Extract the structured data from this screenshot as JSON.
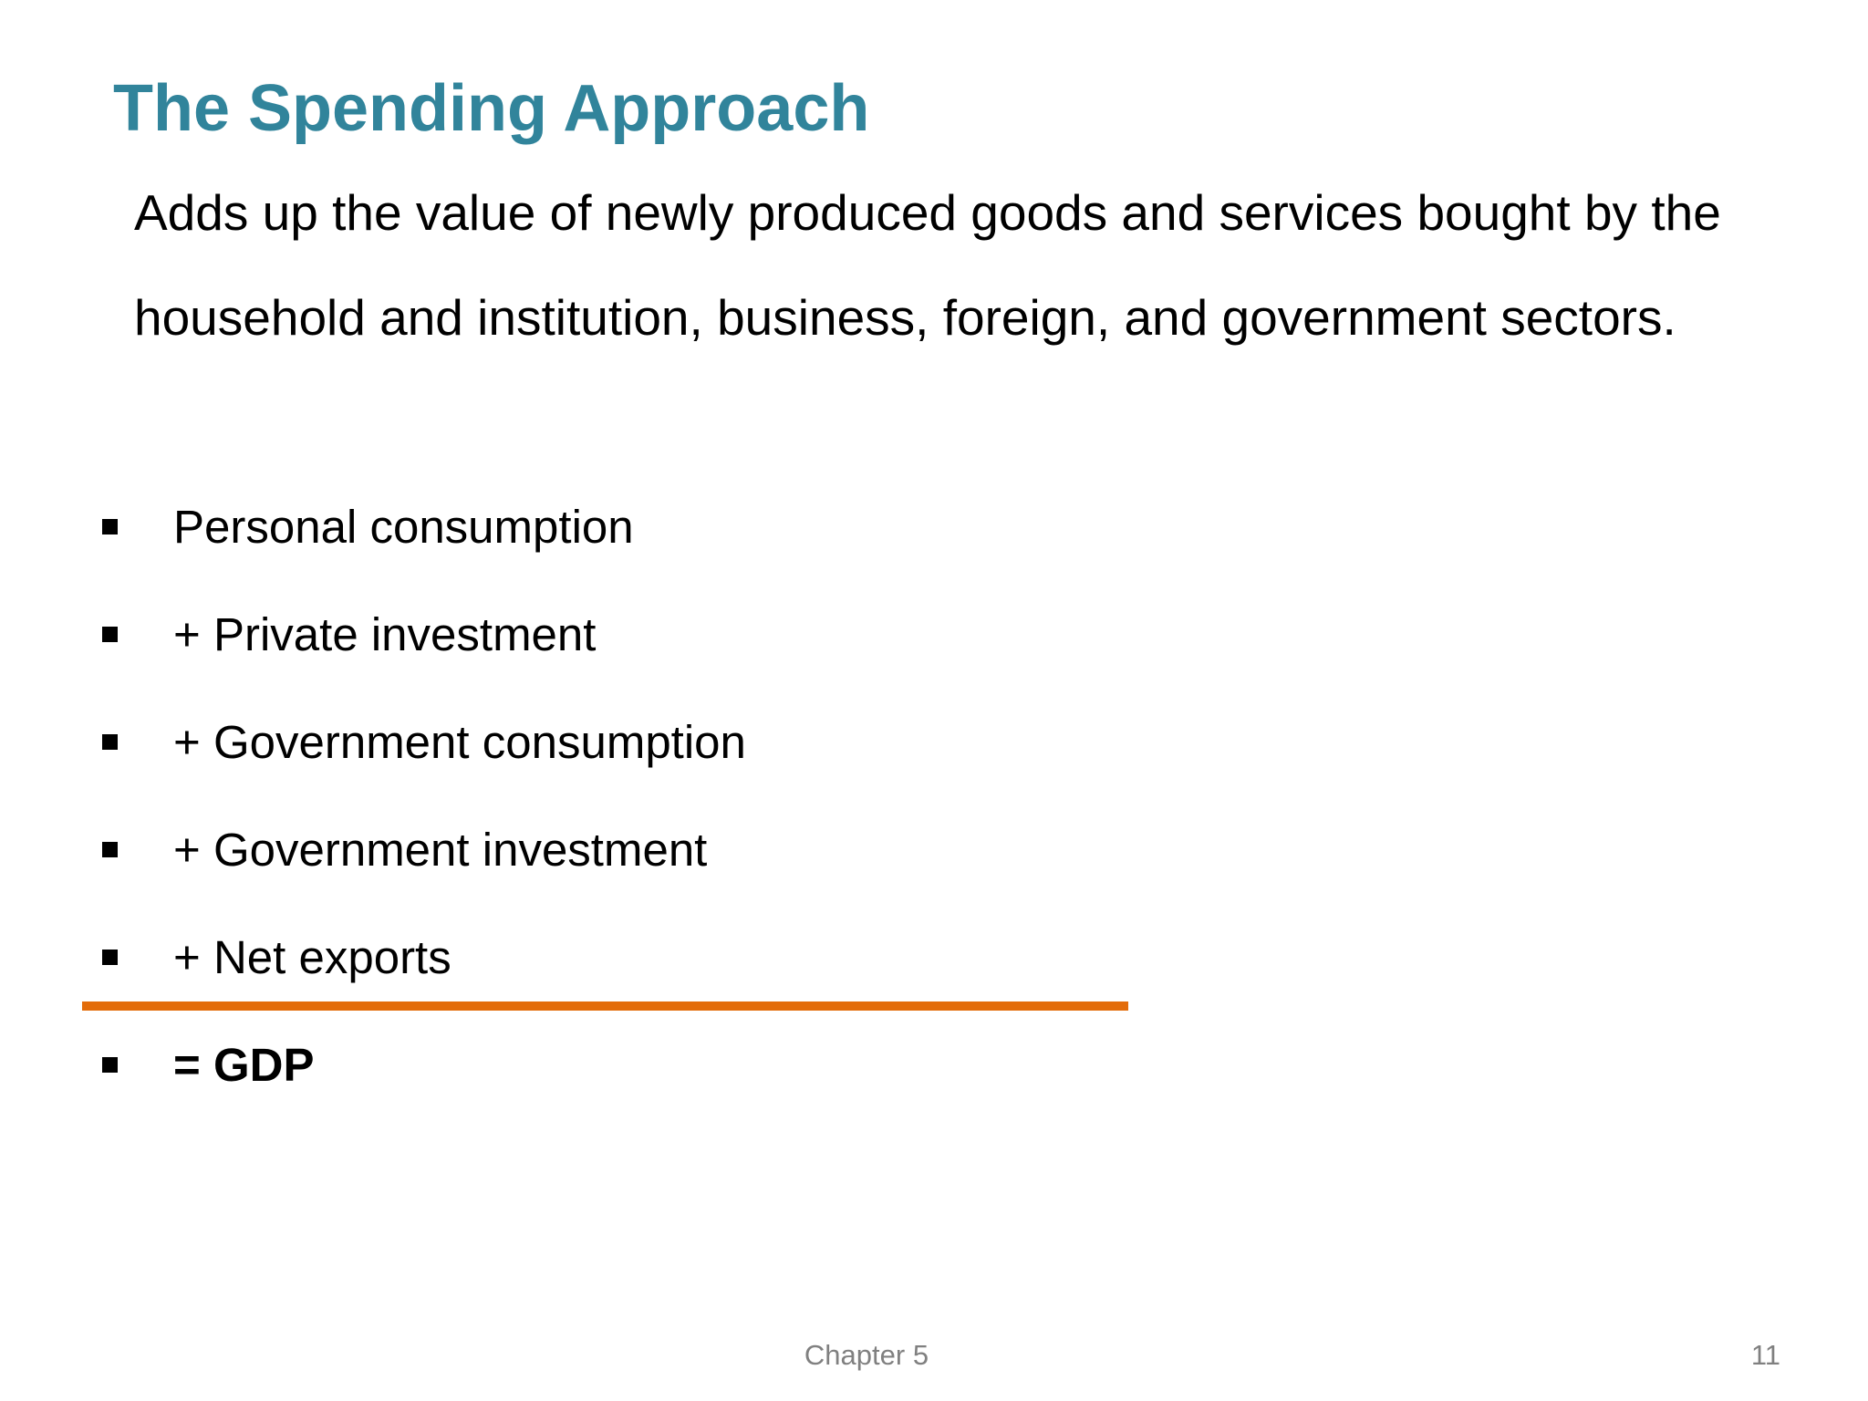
{
  "slide": {
    "title": "The Spending Approach",
    "intro": "Adds up the value of newly produced goods and services bought by the household and institution, business, foreign, and government sectors.",
    "components": [
      {
        "label": "Personal consumption"
      },
      {
        "label": "+ Private investment"
      },
      {
        "label": "+ Government consumption"
      },
      {
        "label": "+ Government investment"
      },
      {
        "label": "+ Net exports"
      }
    ],
    "total": {
      "label": "= GDP"
    },
    "footer": {
      "chapter": "Chapter 5",
      "page_number": "11"
    }
  },
  "colors": {
    "title": "#31849b",
    "rule": "#e36c0a",
    "footer": "#808080"
  }
}
